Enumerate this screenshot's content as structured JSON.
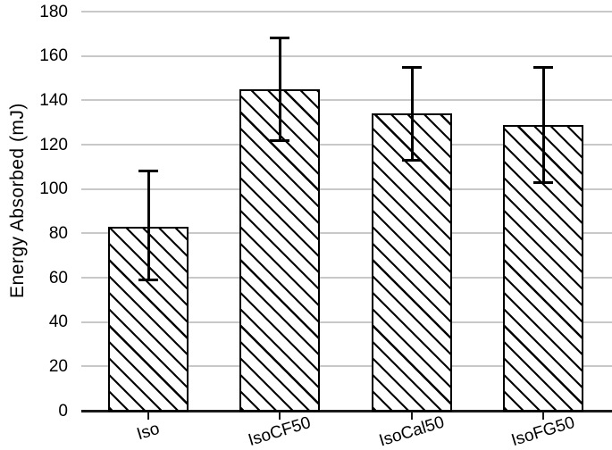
{
  "chart_data": {
    "type": "bar",
    "title": "",
    "xlabel": "",
    "ylabel": "Energy Absorbed (mJ)",
    "categories": [
      "Iso",
      "IsoCF50",
      "IsoCal50",
      "IsoFG50"
    ],
    "values": [
      83,
      145,
      134,
      129
    ],
    "error_high": [
      108,
      168,
      155,
      155
    ],
    "error_low": [
      59,
      122,
      113,
      103
    ],
    "ylim": [
      0,
      180
    ],
    "yticks": [
      0,
      20,
      40,
      60,
      80,
      100,
      120,
      140,
      160,
      180
    ],
    "grid": "horizontal",
    "legend": "none",
    "x_tick_label_rotation_deg": -17,
    "style": {
      "bar_fill": "#ffffff",
      "hatch": "diagonal-backslash",
      "hatch_color": "#000000",
      "bar_border_color": "#000000",
      "gridline_color": "#c8c8c8",
      "axis_color": "#1a1a1a",
      "error_bar_color": "#000000",
      "text_color": "#000000"
    }
  }
}
